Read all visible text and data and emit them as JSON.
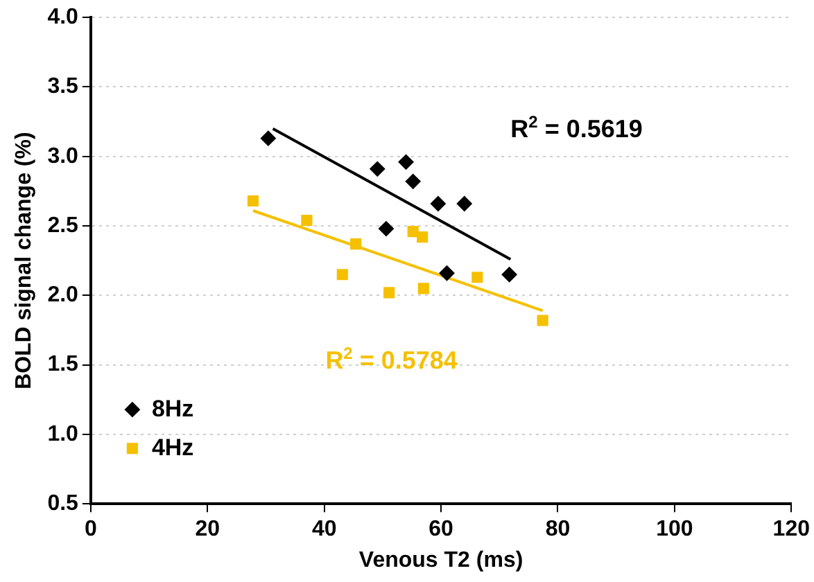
{
  "chart_data": {
    "type": "scatter",
    "xlabel": "Venous T2 (ms)",
    "ylabel": "BOLD signal change (%)",
    "xlim": [
      0,
      120
    ],
    "xticks": [
      0,
      20,
      40,
      60,
      80,
      100,
      120
    ],
    "ylim": [
      0.5,
      4.0
    ],
    "yticks": [
      {
        "value": 0.5,
        "label": "0.5"
      },
      {
        "value": 1.0,
        "label": "1.0"
      },
      {
        "value": 1.5,
        "label": "1.5"
      },
      {
        "value": 2.0,
        "label": "2.0"
      },
      {
        "value": 2.5,
        "label": "2.5"
      },
      {
        "value": 3.0,
        "label": "3.0"
      },
      {
        "value": 3.5,
        "label": "3.5"
      },
      {
        "value": 4.0,
        "label": "4.0"
      }
    ],
    "grid": "y",
    "legend": "bottom left",
    "series": [
      {
        "name": "8Hz",
        "type": "scatter",
        "marker": "diamond",
        "color": "#000000",
        "x": [
          30.4,
          49.1,
          54.0,
          55.2,
          59.5,
          64.0,
          50.6,
          61.0,
          71.7
        ],
        "values": [
          3.13,
          2.91,
          2.96,
          2.82,
          2.66,
          2.66,
          2.48,
          2.16,
          2.15
        ]
      },
      {
        "name": "4Hz",
        "type": "scatter",
        "marker": "square",
        "color": "#f5c000",
        "x": [
          27.8,
          37.0,
          45.4,
          43.1,
          55.2,
          56.8,
          51.1,
          57.0,
          66.2,
          77.4
        ],
        "values": [
          2.68,
          2.54,
          2.37,
          2.15,
          2.46,
          2.42,
          2.02,
          2.05,
          2.13,
          1.82
        ]
      },
      {
        "type": "line",
        "marker": "none",
        "color": "#000000",
        "x": [
          31.2,
          71.9
        ],
        "values": [
          3.2,
          2.26
        ]
      },
      {
        "type": "line",
        "marker": "none",
        "color": "#f5c000",
        "x": [
          27.8,
          77.4
        ],
        "values": [
          2.61,
          1.89
        ]
      }
    ],
    "annotations": [
      "R$^{2}$ = 0.5619",
      "R$^{2}$ = 0.5784"
    ]
  }
}
